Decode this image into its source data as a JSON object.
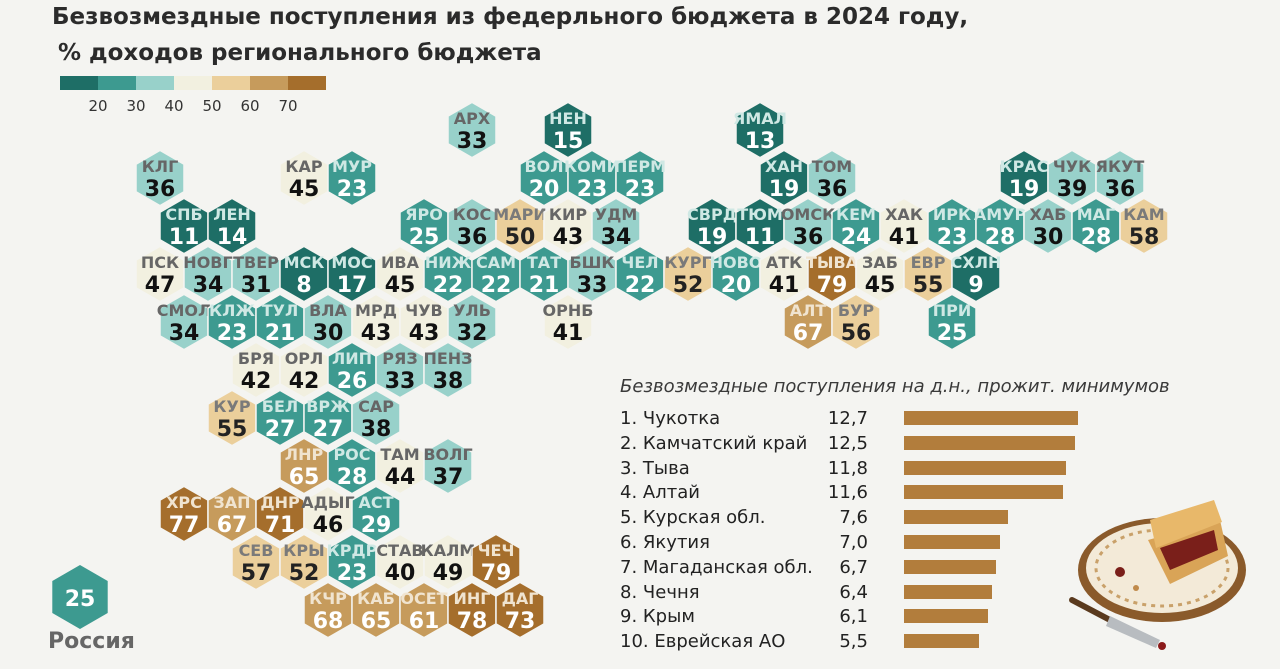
{
  "title_line1": "Безвозмездные поступления из федерльного бюджета в 2024 году,",
  "title_line2": "% доходов регионального бюджета",
  "legend": {
    "colors": [
      "#1e6e66",
      "#3d9a90",
      "#98d1ca",
      "#f2f0e0",
      "#ebcf9b",
      "#c69b5c",
      "#a56e2c"
    ],
    "labels": [
      "20",
      "30",
      "40",
      "50",
      "60",
      "70"
    ]
  },
  "regions": [
    {
      "abbr": "АРХ",
      "value": 33,
      "col": 9,
      "row": 0
    },
    {
      "abbr": "НЕН",
      "value": 15,
      "col": 11,
      "row": 0
    },
    {
      "abbr": "ЯМАЛ",
      "value": 13,
      "col": 15,
      "row": 0
    },
    {
      "abbr": "КЛГ",
      "value": 36,
      "col": 2,
      "row": 1
    },
    {
      "abbr": "КАР",
      "value": 45,
      "col": 5,
      "row": 1
    },
    {
      "abbr": "МУР",
      "value": 23,
      "col": 6,
      "row": 1
    },
    {
      "abbr": "ВОЛ",
      "value": 20,
      "col": 10,
      "row": 1
    },
    {
      "abbr": "КОМИ",
      "value": 23,
      "col": 11,
      "row": 1
    },
    {
      "abbr": "ПЕРМ",
      "value": 23,
      "col": 12,
      "row": 1
    },
    {
      "abbr": "ХАН",
      "value": 19,
      "col": 15,
      "row": 1
    },
    {
      "abbr": "ТОМ",
      "value": 36,
      "col": 16,
      "row": 1
    },
    {
      "abbr": "КРАС",
      "value": 19,
      "col": 20,
      "row": 1
    },
    {
      "abbr": "ЧУК",
      "value": 39,
      "col": 21,
      "row": 1
    },
    {
      "abbr": "ЯКУТ",
      "value": 36,
      "col": 22,
      "row": 1
    },
    {
      "abbr": "СПБ",
      "value": 11,
      "col": 3,
      "row": 2
    },
    {
      "abbr": "ЛЕН",
      "value": 14,
      "col": 4,
      "row": 2
    },
    {
      "abbr": "ЯРО",
      "value": 25,
      "col": 8,
      "row": 2
    },
    {
      "abbr": "КОС",
      "value": 36,
      "col": 9,
      "row": 2
    },
    {
      "abbr": "МАРИ",
      "value": 50,
      "col": 10,
      "row": 2
    },
    {
      "abbr": "КИР",
      "value": 43,
      "col": 11,
      "row": 2
    },
    {
      "abbr": "УДМ",
      "value": 34,
      "col": 12,
      "row": 2
    },
    {
      "abbr": "СВРД",
      "value": 19,
      "col": 14,
      "row": 2
    },
    {
      "abbr": "ТЮМ",
      "value": 11,
      "col": 15,
      "row": 2
    },
    {
      "abbr": "ОМСК",
      "value": 36,
      "col": 16,
      "row": 2
    },
    {
      "abbr": "КЕМ",
      "value": 24,
      "col": 17,
      "row": 2
    },
    {
      "abbr": "ХАК",
      "value": 41,
      "col": 18,
      "row": 2
    },
    {
      "abbr": "ИРК",
      "value": 23,
      "col": 19,
      "row": 2
    },
    {
      "abbr": "АМУР",
      "value": 28,
      "col": 20,
      "row": 2
    },
    {
      "abbr": "ХАБ",
      "value": 30,
      "col": 21,
      "row": 2
    },
    {
      "abbr": "МАГ",
      "value": 28,
      "col": 22,
      "row": 2
    },
    {
      "abbr": "КАМ",
      "value": 58,
      "col": 23,
      "row": 2
    },
    {
      "abbr": "ПСК",
      "value": 47,
      "col": 2,
      "row": 3
    },
    {
      "abbr": "НОВГ",
      "value": 34,
      "col": 3,
      "row": 3
    },
    {
      "abbr": "ТВЕР",
      "value": 31,
      "col": 4,
      "row": 3
    },
    {
      "abbr": "МСК",
      "value": 8,
      "col": 5,
      "row": 3
    },
    {
      "abbr": "МОС",
      "value": 17,
      "col": 6,
      "row": 3
    },
    {
      "abbr": "ИВА",
      "value": 45,
      "col": 7,
      "row": 3
    },
    {
      "abbr": "НИЖ",
      "value": 22,
      "col": 8,
      "row": 3
    },
    {
      "abbr": "САМ",
      "value": 22,
      "col": 9,
      "row": 3
    },
    {
      "abbr": "ТАТ",
      "value": 21,
      "col": 10,
      "row": 3
    },
    {
      "abbr": "БШК",
      "value": 33,
      "col": 11,
      "row": 3
    },
    {
      "abbr": "ЧЕЛ",
      "value": 22,
      "col": 12,
      "row": 3
    },
    {
      "abbr": "КУРГ",
      "value": 52,
      "col": 13,
      "row": 3
    },
    {
      "abbr": "НОВО",
      "value": 20,
      "col": 14,
      "row": 3
    },
    {
      "abbr": "АТК",
      "value": 41,
      "col": 15,
      "row": 3
    },
    {
      "abbr": "ТЫВА",
      "value": 79,
      "col": 16,
      "row": 3
    },
    {
      "abbr": "ЗАБ",
      "value": 45,
      "col": 17,
      "row": 3
    },
    {
      "abbr": "ЕВР",
      "value": 55,
      "col": 18,
      "row": 3
    },
    {
      "abbr": "СХЛН",
      "value": 9,
      "col": 19,
      "row": 3
    },
    {
      "abbr": "СМОЛ",
      "value": 34,
      "col": 3,
      "row": 4
    },
    {
      "abbr": "КЛЖ",
      "value": 23,
      "col": 4,
      "row": 4
    },
    {
      "abbr": "ТУЛ",
      "value": 21,
      "col": 5,
      "row": 4
    },
    {
      "abbr": "ВЛА",
      "value": 30,
      "col": 6,
      "row": 4
    },
    {
      "abbr": "МРД",
      "value": 43,
      "col": 7,
      "row": 4
    },
    {
      "abbr": "ЧУВ",
      "value": 43,
      "col": 8,
      "row": 4
    },
    {
      "abbr": "УЛЬ",
      "value": 32,
      "col": 9,
      "row": 4
    },
    {
      "abbr": "ОРНБ",
      "value": 41,
      "col": 11,
      "row": 4
    },
    {
      "abbr": "АЛТ",
      "value": 67,
      "col": 16,
      "row": 4
    },
    {
      "abbr": "БУР",
      "value": 56,
      "col": 17,
      "row": 4
    },
    {
      "abbr": "ПРИ",
      "value": 25,
      "col": 19,
      "row": 4
    },
    {
      "abbr": "БРЯ",
      "value": 42,
      "col": 4,
      "row": 5
    },
    {
      "abbr": "ОРЛ",
      "value": 42,
      "col": 5,
      "row": 5
    },
    {
      "abbr": "ЛИП",
      "value": 26,
      "col": 6,
      "row": 5
    },
    {
      "abbr": "РЯЗ",
      "value": 33,
      "col": 7,
      "row": 5
    },
    {
      "abbr": "ПЕНЗ",
      "value": 38,
      "col": 8,
      "row": 5
    },
    {
      "abbr": "КУР",
      "value": 55,
      "col": 4,
      "row": 6
    },
    {
      "abbr": "БЕЛ",
      "value": 27,
      "col": 5,
      "row": 6
    },
    {
      "abbr": "ВРЖ",
      "value": 27,
      "col": 6,
      "row": 6
    },
    {
      "abbr": "САР",
      "value": 38,
      "col": 7,
      "row": 6
    },
    {
      "abbr": "ЛНР",
      "value": 65,
      "col": 5,
      "row": 7
    },
    {
      "abbr": "РОС",
      "value": 28,
      "col": 6,
      "row": 7
    },
    {
      "abbr": "ТАМ",
      "value": 44,
      "col": 7,
      "row": 7
    },
    {
      "abbr": "ВОЛГ",
      "value": 37,
      "col": 8,
      "row": 7
    },
    {
      "abbr": "ХРС",
      "value": 77,
      "col": 3,
      "row": 8
    },
    {
      "abbr": "ЗАП",
      "value": 67,
      "col": 4,
      "row": 8
    },
    {
      "abbr": "ДНР",
      "value": 71,
      "col": 5,
      "row": 8
    },
    {
      "abbr": "АДЫГ",
      "value": 46,
      "col": 6,
      "row": 8
    },
    {
      "abbr": "АСТ",
      "value": 29,
      "col": 7,
      "row": 8
    },
    {
      "abbr": "СЕВ",
      "value": 57,
      "col": 4,
      "row": 9
    },
    {
      "abbr": "КРЫ",
      "value": 52,
      "col": 5,
      "row": 9
    },
    {
      "abbr": "КРДР",
      "value": 23,
      "col": 6,
      "row": 9
    },
    {
      "abbr": "СТАВ",
      "value": 40,
      "col": 7,
      "row": 9
    },
    {
      "abbr": "КАЛМ",
      "value": 49,
      "col": 8,
      "row": 9
    },
    {
      "abbr": "ЧЕЧ",
      "value": 79,
      "col": 9,
      "row": 9
    },
    {
      "abbr": "КЧР",
      "value": 68,
      "col": 6,
      "row": 10
    },
    {
      "abbr": "КАБ",
      "value": 65,
      "col": 7,
      "row": 10
    },
    {
      "abbr": "ОСЕТ",
      "value": 61,
      "col": 8,
      "row": 10
    },
    {
      "abbr": "ИНГ",
      "value": 78,
      "col": 9,
      "row": 10
    },
    {
      "abbr": "ДАГ",
      "value": 73,
      "col": 10,
      "row": 10
    }
  ],
  "russia": {
    "value": "25",
    "label": "Россия"
  },
  "ranking": {
    "title": "Безвозмездные поступления на д.н., прожит. минимумов",
    "items": [
      {
        "rank": "1.",
        "name": "Чукотка",
        "value": 12.7,
        "value_text": "12,7"
      },
      {
        "rank": "2.",
        "name": "Камчатский край",
        "value": 12.5,
        "value_text": "12,5"
      },
      {
        "rank": "3.",
        "name": "Тыва",
        "value": 11.8,
        "value_text": "11,8"
      },
      {
        "rank": "4.",
        "name": "Алтай",
        "value": 11.6,
        "value_text": "11,6"
      },
      {
        "rank": "5.",
        "name": "Курская обл.",
        "value": 7.6,
        "value_text": "7,6"
      },
      {
        "rank": "6.",
        "name": "Якутия",
        "value": 7.0,
        "value_text": "7,0"
      },
      {
        "rank": "7.",
        "name": "Магаданская обл.",
        "value": 6.7,
        "value_text": "6,7"
      },
      {
        "rank": "8.",
        "name": "Чечня",
        "value": 6.4,
        "value_text": "6,4"
      },
      {
        "rank": "9.",
        "name": "Крым",
        "value": 6.1,
        "value_text": "6,1"
      },
      {
        "rank": "10.",
        "name": "Еврейская АО",
        "value": 5.5,
        "value_text": "5,5"
      }
    ],
    "bar_color": "#b27d3c"
  }
}
